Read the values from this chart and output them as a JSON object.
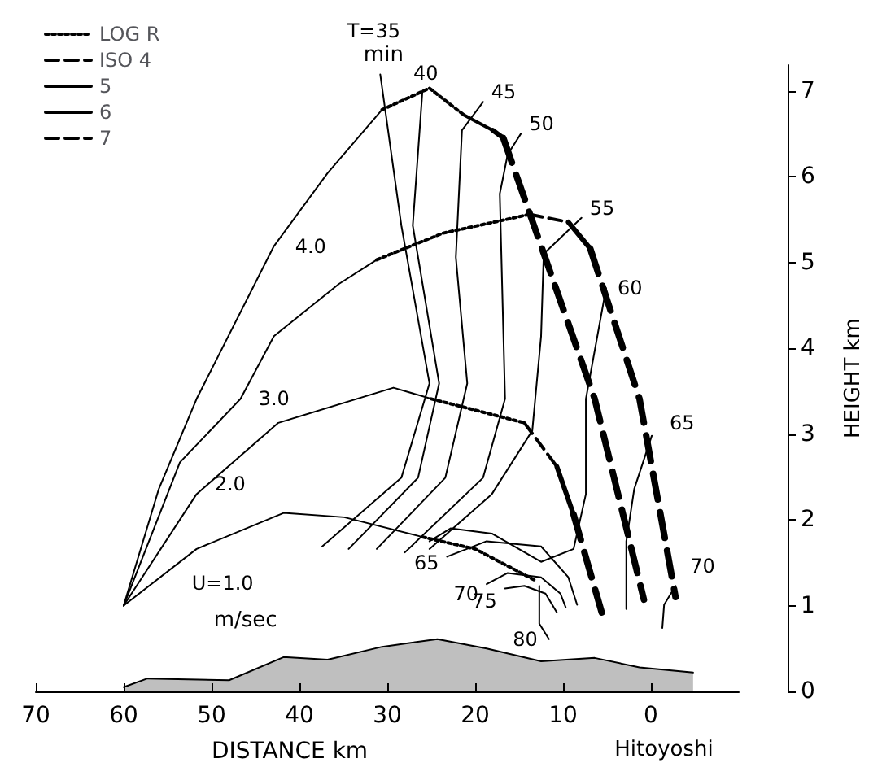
{
  "chart_data": {
    "type": "line",
    "xlabel": "DISTANCE km",
    "ylabel": "HEIGHT km",
    "xlim": [
      70,
      -10
    ],
    "xticks": [
      70,
      60,
      50,
      40,
      30,
      20,
      10,
      0
    ],
    "ylim": [
      0,
      7.3
    ],
    "yticks": [
      0,
      1,
      2,
      3,
      4,
      5,
      6,
      7
    ],
    "grid": false,
    "legend": "top left",
    "annotations": [
      "min",
      "m/sec",
      "Hitoyoshi"
    ],
    "series": [
      {
        "name": "LOG R",
        "color": "#000000",
        "line_style": "dotted",
        "x": [
          26.0,
          20.0,
          13.1,
          null,
          25.0,
          14.4,
          null,
          31.2,
          23.7,
          13.8,
          null,
          30.6,
          25.2,
          21.3
        ],
        "values": [
          1.8,
          1.66,
          1.29,
          null,
          3.41,
          3.13,
          null,
          5.03,
          5.34,
          5.56,
          null,
          6.78,
          7.03,
          6.72
        ]
      },
      {
        "name": "ISO 4",
        "color": "#000000",
        "line_style": "dashed",
        "x": [
          14.4,
          10.7,
          null,
          13.8,
          9.4
        ],
        "values": [
          3.13,
          2.62,
          null,
          5.56,
          5.47
        ]
      },
      {
        "name": "5",
        "color": "#000000",
        "line_style": "solid",
        "x": [
          21.3,
          18.0
        ],
        "values": [
          6.72,
          6.54
        ]
      },
      {
        "name": "6",
        "color": "#000000",
        "line_style": "solid",
        "x": [
          10.7,
          8.8,
          null,
          9.4,
          6.9,
          null,
          18.0,
          16.8
        ],
        "values": [
          2.62,
          2.06,
          null,
          5.47,
          5.16,
          null,
          6.54,
          6.45
        ]
      },
      {
        "name": "7",
        "color": "#000000",
        "line_style": "dashed",
        "x": [
          8.8,
          5.6,
          null,
          6.9,
          1.3,
          -2.8,
          null,
          16.8,
          6.4,
          0.8
        ],
        "values": [
          2.06,
          0.92,
          null,
          5.16,
          3.41,
          1.1,
          null,
          6.45,
          3.41,
          1.07
        ]
      },
      {
        "name": "U=1.0",
        "color": "#000000",
        "x": [
          60,
          51.7,
          41.8,
          34.9,
          26.0
        ],
        "values": [
          1.0,
          1.66,
          2.08,
          2.03,
          1.8
        ]
      },
      {
        "name": "2.0",
        "color": "#000000",
        "x": [
          60,
          51.7,
          42.4,
          29.3,
          25.0
        ],
        "values": [
          1.0,
          2.3,
          3.13,
          3.54,
          3.41
        ]
      },
      {
        "name": "3.0",
        "color": "#000000",
        "x": [
          60,
          53.6,
          46.7,
          42.9,
          35.5,
          31.2
        ],
        "values": [
          1.0,
          2.67,
          3.41,
          4.14,
          4.75,
          5.03
        ]
      },
      {
        "name": "4.0",
        "color": "#000000",
        "x": [
          60,
          56.0,
          51.7,
          42.9,
          36.8,
          30.6
        ],
        "values": [
          1.0,
          2.36,
          3.41,
          5.19,
          6.04,
          6.78
        ]
      },
      {
        "name": "T=35",
        "color": "#000000",
        "x": [
          30.8,
          28.4,
          25.2,
          28.4,
          37.4
        ],
        "values": [
          7.19,
          5.43,
          3.59,
          2.49,
          1.69
        ]
      },
      {
        "name": "40",
        "color": "#000000",
        "x": [
          26.0,
          27.1,
          24.1,
          26.5,
          34.4
        ],
        "values": [
          7.0,
          5.43,
          3.59,
          2.49,
          1.66
        ]
      },
      {
        "name": "45",
        "color": "#000000",
        "x": [
          19.1,
          21.5,
          22.2,
          20.9,
          23.4,
          31.2
        ],
        "values": [
          6.87,
          6.54,
          5.06,
          3.59,
          2.49,
          1.66
        ]
      },
      {
        "name": "50",
        "color": "#000000",
        "x": [
          14.8,
          16.3,
          17.2,
          16.6,
          19.1,
          28.0
        ],
        "values": [
          6.5,
          6.26,
          5.8,
          3.41,
          2.49,
          1.62
        ]
      },
      {
        "name": "55",
        "color": "#000000",
        "x": [
          7.9,
          12.2,
          12.5,
          13.5,
          18.1,
          25.2
        ],
        "values": [
          5.52,
          5.1,
          4.14,
          3.04,
          2.3,
          1.66
        ]
      },
      {
        "name": "60",
        "color": "#000000",
        "x": [
          5.1,
          7.4,
          7.4,
          8.8,
          12.5,
          18.1,
          22.8,
          25.2
        ],
        "values": [
          4.7,
          3.41,
          2.3,
          1.66,
          1.51,
          1.84,
          1.9,
          1.75
        ]
      },
      {
        "name": "65",
        "color": "#000000",
        "x": [
          -0.1,
          1.9,
          2.8,
          2.8
        ],
        "values": [
          2.98,
          2.36,
          1.75,
          0.96
        ]
      },
      {
        "name": "70",
        "color": "#000000",
        "x": [
          -2.8,
          -1.5,
          -1.3
        ],
        "values": [
          1.23,
          1.01,
          0.74
        ]
      },
      {
        "name": "65",
        "color": "#000000",
        "x": [
          23.2,
          18.7,
          12.5,
          9.4,
          8.4
        ],
        "values": [
          1.57,
          1.75,
          1.69,
          1.33,
          1.01
        ]
      },
      {
        "name": "70",
        "color": "#000000",
        "x": [
          18.7,
          16.3,
          12.5,
          10.3,
          9.7
        ],
        "values": [
          1.25,
          1.38,
          1.33,
          1.14,
          0.98
        ]
      },
      {
        "name": "75",
        "color": "#000000",
        "x": [
          16.6,
          14.4,
          12.0,
          10.7
        ],
        "values": [
          1.2,
          1.23,
          1.14,
          0.92
        ]
      },
      {
        "name": "80",
        "color": "#000000",
        "x": [
          12.7,
          12.7,
          11.6
        ],
        "values": [
          1.23,
          0.79,
          0.61
        ]
      },
      {
        "type": "area",
        "color": "#000000",
        "x": [
          60,
          57.3,
          48,
          41.8,
          36.8,
          30.6,
          24.3,
          18.7,
          12.5,
          6.4,
          1.3,
          -4.8
        ],
        "values": [
          0.05,
          0.15,
          0.13,
          0.4,
          0.37,
          0.52,
          0.61,
          0.5,
          0.35,
          0.39,
          0.28,
          0.22
        ]
      }
    ]
  }
}
